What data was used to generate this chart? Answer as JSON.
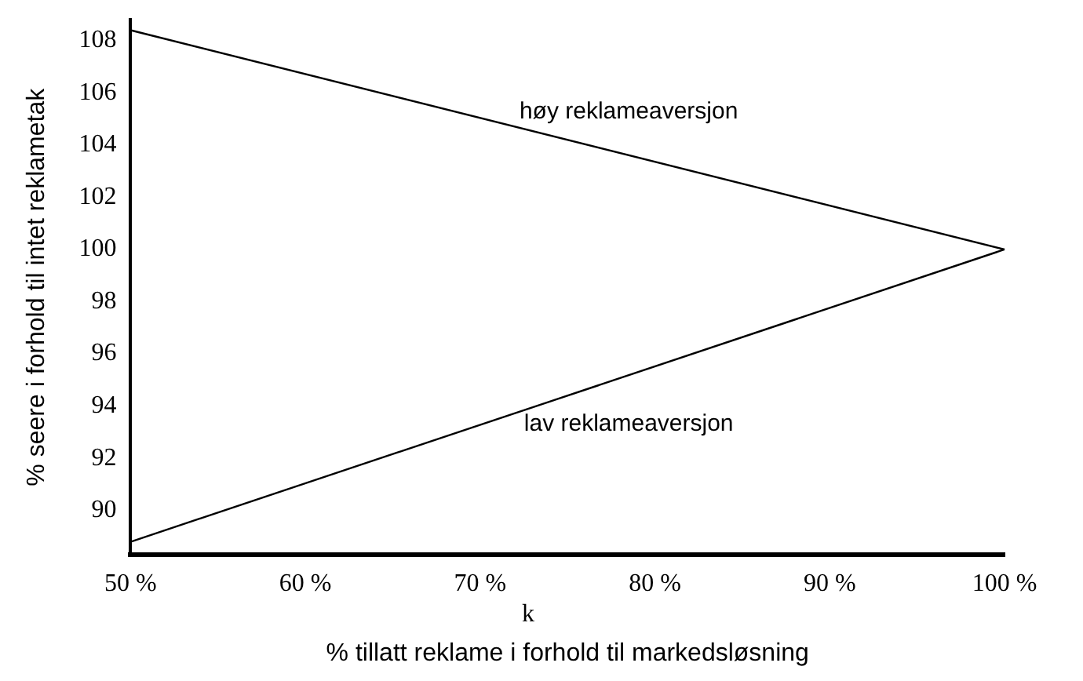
{
  "chart_data": {
    "type": "line",
    "xlabel": "% tillatt reklame i forhold til markedsløsning",
    "ylabel": "% seere i forhold til intet reklametak",
    "x": [
      50,
      100
    ],
    "series": [
      {
        "name": "høy reklameaversjon",
        "color": "#000000",
        "values": [
          108.4,
          100
        ]
      },
      {
        "name": "lav reklameaversjon",
        "color": "#000000",
        "values": [
          88.8,
          100
        ]
      }
    ],
    "xlim": [
      50,
      100
    ],
    "xticks": [
      {
        "value": 50,
        "label": "50 %"
      },
      {
        "value": 60,
        "label": "60 %"
      },
      {
        "value": 70,
        "label": "70 %"
      },
      {
        "value": 80,
        "label": "80 %"
      },
      {
        "value": 90,
        "label": "90 %"
      },
      {
        "value": 100,
        "label": "100 %"
      }
    ],
    "ylim": [
      88.3,
      108.8
    ],
    "yticks": [
      90,
      92,
      94,
      96,
      98,
      100,
      102,
      104,
      106,
      108
    ],
    "annotations": [
      "k"
    ],
    "grid": false,
    "legend": false,
    "marker": "none",
    "line_style": "solid"
  }
}
